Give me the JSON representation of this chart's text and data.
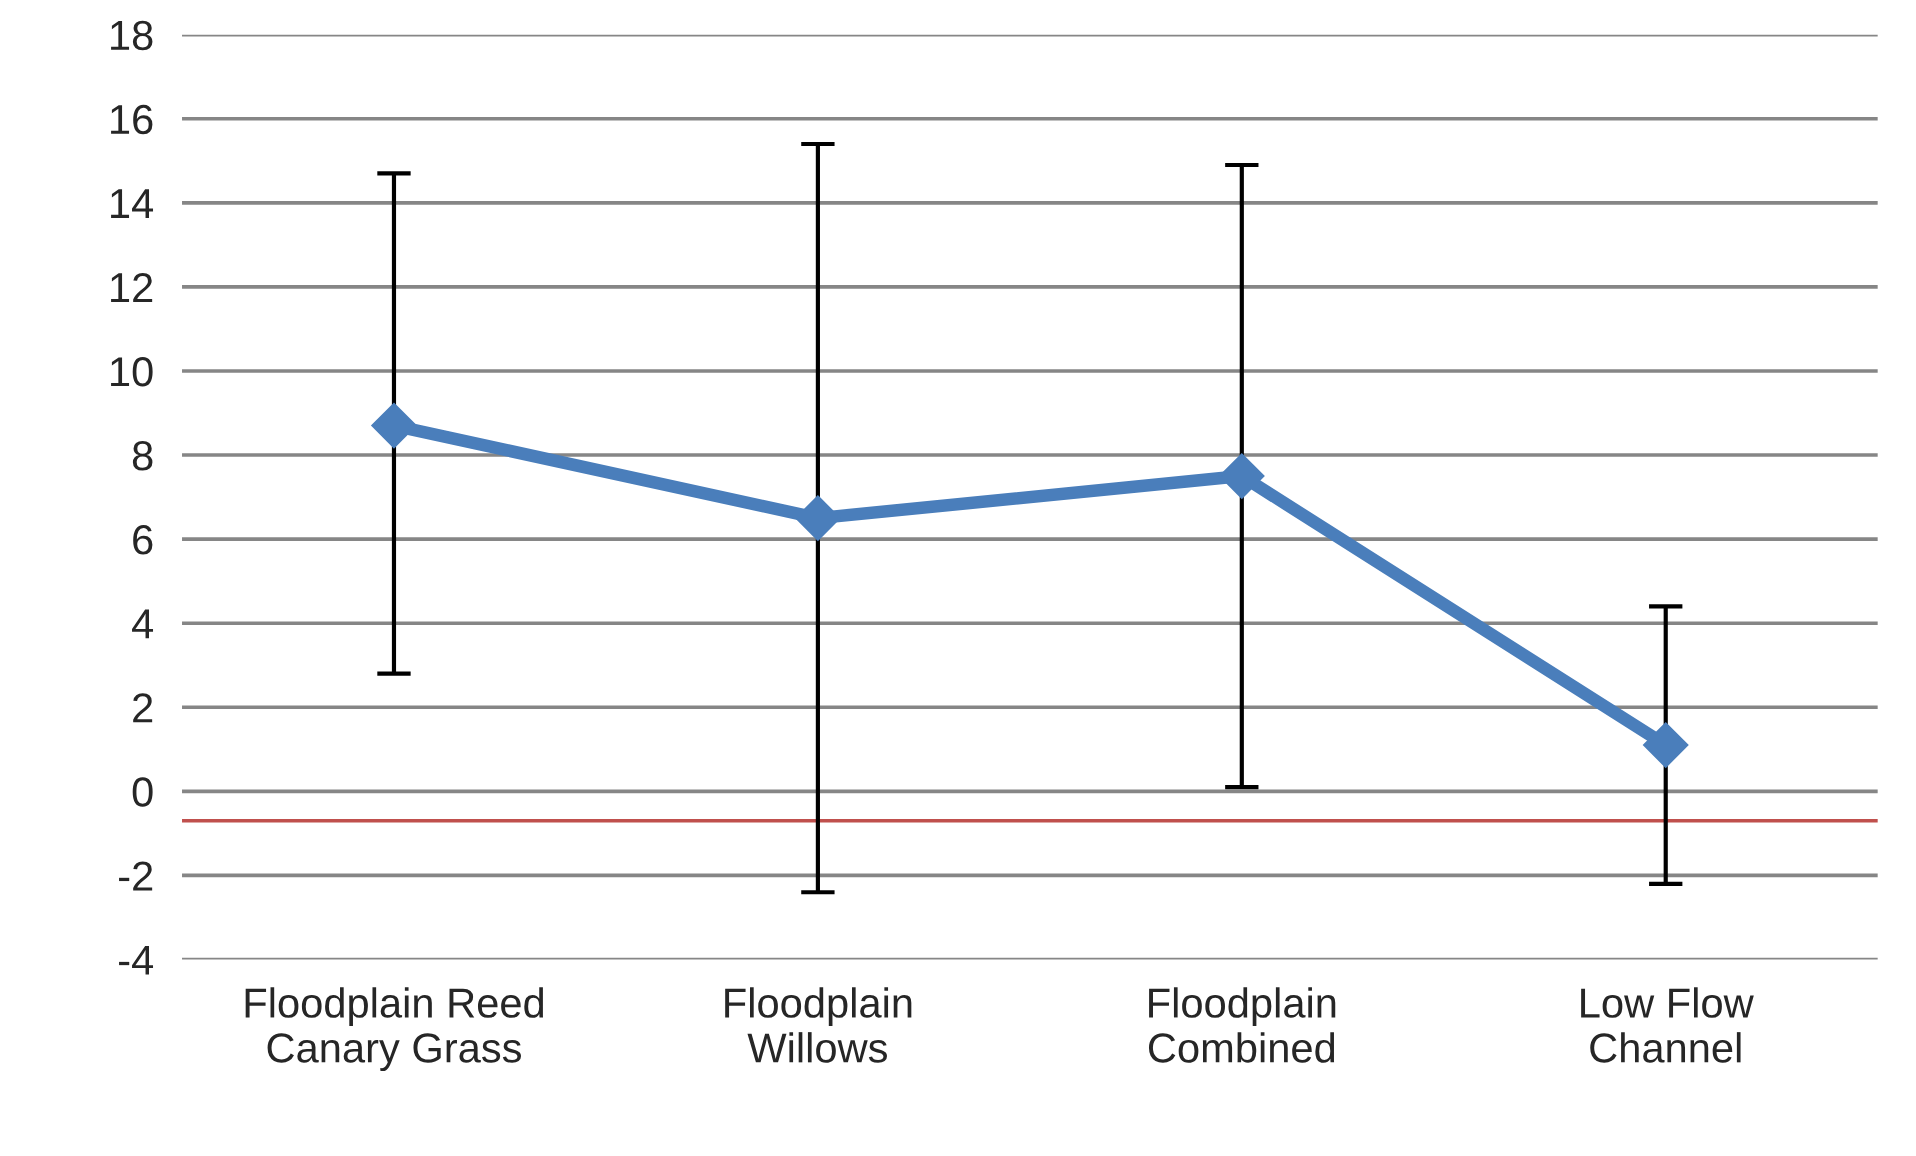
{
  "chart_data": {
    "type": "line",
    "categories": [
      "Floodplain Reed\nCanary Grass",
      "Floodplain\nWillows",
      "Floodplain\nCombined",
      "Low Flow\nChannel"
    ],
    "series": [
      {
        "color": "#4a7ebb",
        "values": [
          8.7,
          6.5,
          7.5,
          1.1
        ],
        "errors": [
          [
            2.8,
            14.7
          ],
          [
            -2.4,
            15.4
          ],
          [
            0.1,
            14.9
          ],
          [
            -2.2,
            4.4
          ]
        ]
      }
    ],
    "ylim": [
      -4,
      18
    ],
    "yticks": [
      -4,
      -2,
      0,
      2,
      4,
      6,
      8,
      10,
      12,
      14,
      16,
      18
    ],
    "ref_lines": [
      {
        "axis": "y",
        "value": -0.7,
        "color": "#c0504d"
      }
    ],
    "grid": "y",
    "marker": "diamond",
    "line_style": "solid",
    "legend": false
  }
}
